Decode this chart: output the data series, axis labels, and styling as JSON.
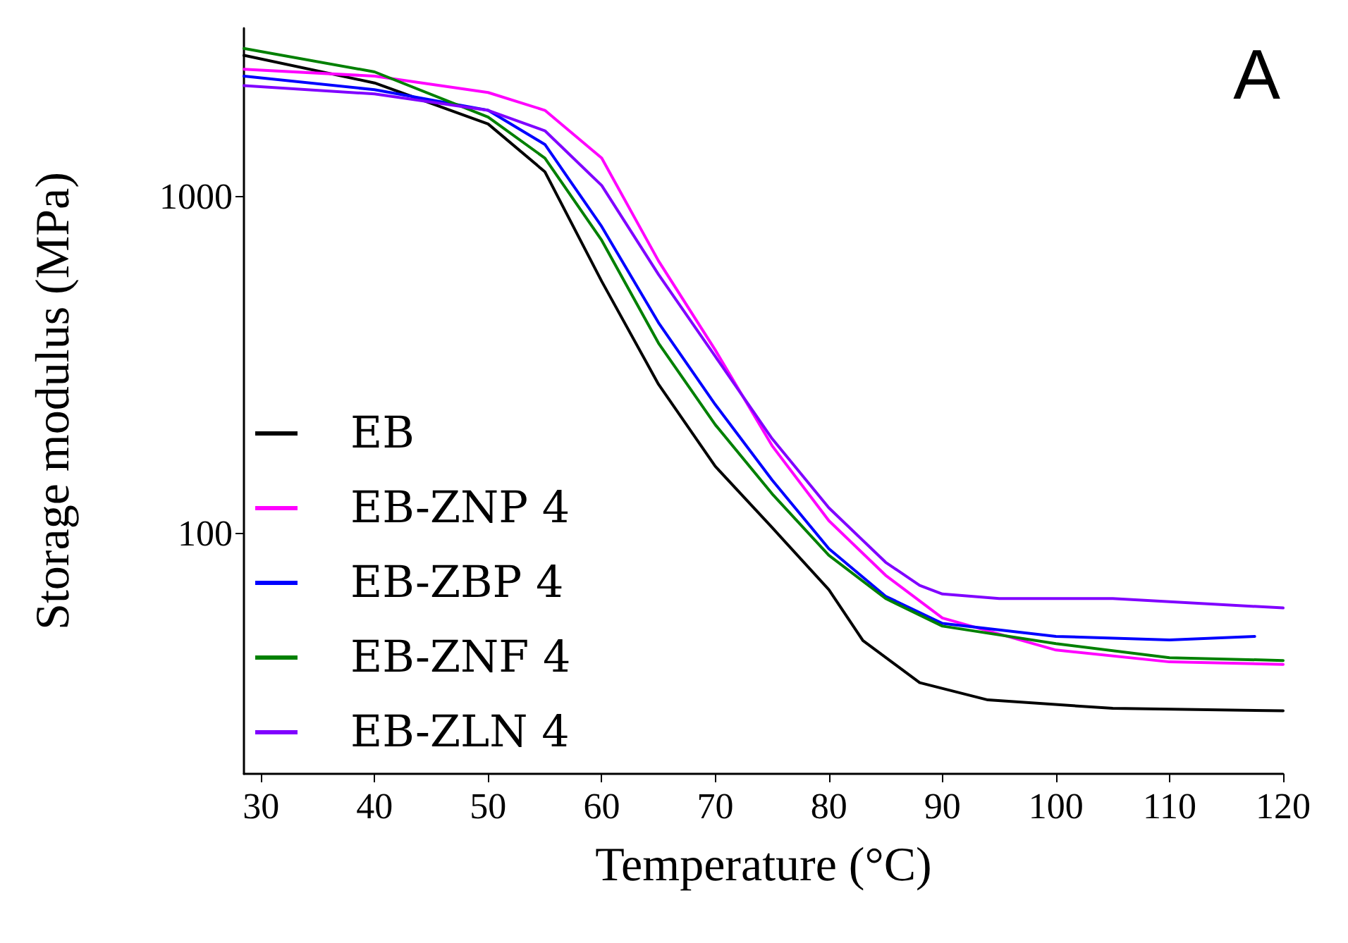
{
  "chart_data": {
    "type": "line",
    "xlabel": "Temperature (°C)",
    "ylabel": "Storage modulus (MPa)",
    "annotations": [
      "A"
    ],
    "xlim": [
      28.5,
      120
    ],
    "xticks": [
      30,
      40,
      50,
      60,
      70,
      80,
      90,
      100,
      110,
      120
    ],
    "ylim": [
      19.3,
      3160
    ],
    "yticks": [
      100,
      1000
    ],
    "log": "y",
    "grid": false,
    "legend": "bottom left",
    "marker": "none",
    "line_style": "solid",
    "series": [
      {
        "name": "EB",
        "color": "#000000",
        "x": [
          28.5,
          40,
          50,
          55,
          60,
          65,
          70,
          75,
          80,
          83,
          88,
          94,
          105,
          120
        ],
        "values": [
          2624,
          2173,
          1642,
          1184,
          560,
          277,
          158,
          104,
          68,
          48,
          36,
          32,
          30.2,
          29.7
        ]
      },
      {
        "name": "EB-ZNP 4",
        "color": "#ff00ff",
        "x": [
          28.5,
          40,
          50,
          55,
          60,
          65,
          70,
          75,
          80,
          85,
          90,
          100,
          110,
          120
        ],
        "values": [
          2388,
          2277,
          2036,
          1802,
          1300,
          644,
          350,
          182,
          109,
          75,
          56,
          45,
          41.5,
          40.8
        ]
      },
      {
        "name": "EB-ZBP 4",
        "color": "#0000ff",
        "x": [
          28.5,
          40,
          50,
          55,
          60,
          65,
          70,
          75,
          80,
          85,
          90,
          100,
          110,
          117.5
        ],
        "values": [
          2277,
          2075,
          1802,
          1427,
          814,
          422,
          241,
          144,
          90,
          65,
          54,
          49.4,
          48.2,
          49.4
        ]
      },
      {
        "name": "EB-ZNF 4",
        "color": "#008000",
        "x": [
          28.5,
          40,
          50,
          55,
          60,
          65,
          70,
          75,
          80,
          85,
          90,
          100,
          110,
          120
        ],
        "values": [
          2750,
          2344,
          1720,
          1300,
          741,
          367,
          210,
          131,
          86,
          64,
          53,
          47,
          42.7,
          41.9
        ]
      },
      {
        "name": "EB-ZLN 4",
        "color": "#8000ff",
        "x": [
          28.5,
          40,
          50,
          55,
          60,
          65,
          70,
          75,
          80,
          85,
          88,
          90,
          95,
          105,
          120
        ],
        "values": [
          2134,
          2016,
          1802,
          1567,
          1078,
          587,
          335,
          191,
          119,
          82,
          70,
          66,
          64,
          64,
          60
        ]
      }
    ]
  }
}
